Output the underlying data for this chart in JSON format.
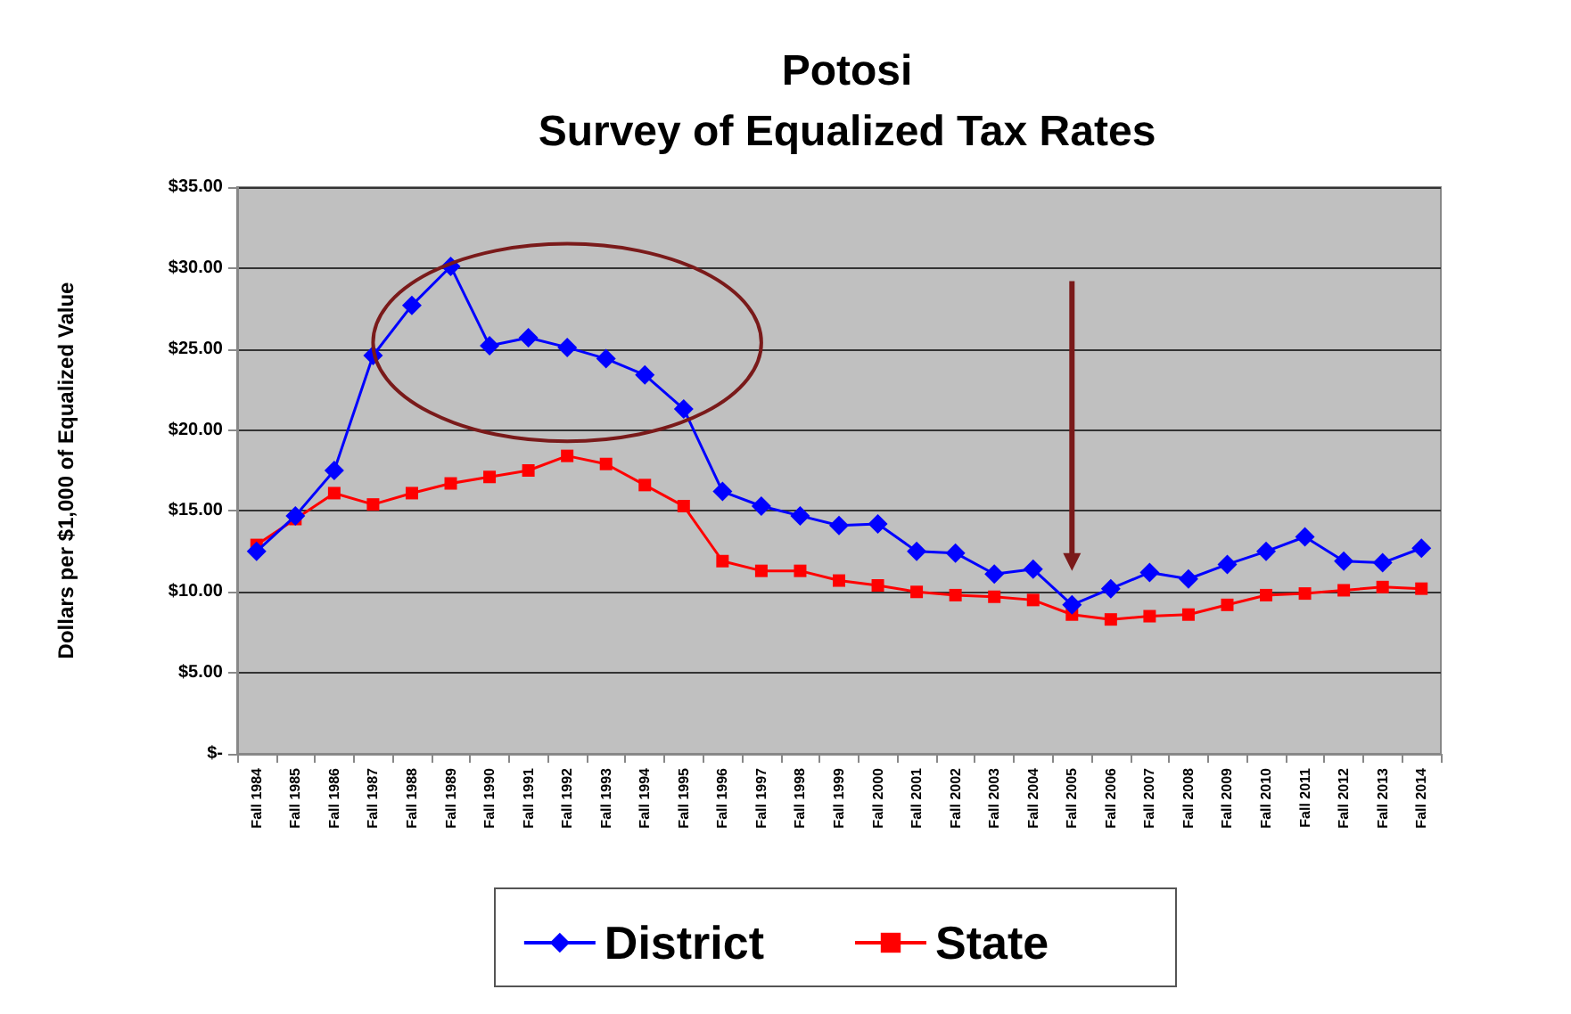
{
  "chart_data": {
    "type": "line",
    "title": "Potosi\nSurvey of Equalized Tax Rates",
    "ylabel": "Dollars per $1,000 of Equalized Value",
    "categories": [
      "Fall 1984",
      "Fall 1985",
      "Fall 1986",
      "Fall 1987",
      "Fall 1988",
      "Fall 1989",
      "Fall 1990",
      "Fall 1991",
      "Fall 1992",
      "Fall 1993",
      "Fall 1994",
      "Fall 1995",
      "Fall 1996",
      "Fall 1997",
      "Fall 1998",
      "Fall 1999",
      "Fall 2000",
      "Fall 2001",
      "Fall 2002",
      "Fall 2003",
      "Fall 2004",
      "Fall 2005",
      "Fall 2006",
      "Fall 2007",
      "Fall 2008",
      "Fall 2009",
      "Fall 2010",
      "Fall 2011",
      "Fall 2012",
      "Fall 2013",
      "Fall 2014"
    ],
    "series": [
      {
        "name": "District",
        "color": "#0000ff",
        "marker": "diamond",
        "values": [
          12.5,
          14.7,
          17.5,
          24.6,
          27.7,
          30.1,
          25.2,
          25.7,
          25.1,
          24.4,
          23.4,
          21.3,
          16.2,
          15.3,
          14.7,
          14.1,
          14.2,
          12.5,
          12.4,
          11.1,
          11.4,
          9.2,
          10.2,
          11.2,
          10.8,
          11.7,
          12.5,
          13.4,
          11.9,
          11.8,
          12.7
        ]
      },
      {
        "name": "State",
        "color": "#ff0000",
        "marker": "square",
        "values": [
          12.9,
          14.5,
          16.1,
          15.4,
          16.1,
          16.7,
          17.1,
          17.5,
          18.4,
          17.9,
          16.6,
          15.3,
          11.9,
          11.3,
          11.3,
          10.7,
          10.4,
          10.0,
          9.8,
          9.7,
          9.5,
          8.6,
          8.3,
          8.5,
          8.6,
          9.2,
          9.8,
          9.9,
          10.1,
          10.3,
          10.2
        ]
      }
    ],
    "ylim": [
      0,
      35
    ],
    "yticks": [
      {
        "value": 0,
        "label": "$-"
      },
      {
        "value": 5,
        "label": "$5.00"
      },
      {
        "value": 10,
        "label": "$10.00"
      },
      {
        "value": 15,
        "label": "$15.00"
      },
      {
        "value": 20,
        "label": "$20.00"
      },
      {
        "value": 25,
        "label": "$25.00"
      },
      {
        "value": 30,
        "label": "$30.00"
      },
      {
        "value": 35,
        "label": "$35.00"
      }
    ],
    "grid": "y",
    "legend": "bottom",
    "line_style": "solid"
  }
}
